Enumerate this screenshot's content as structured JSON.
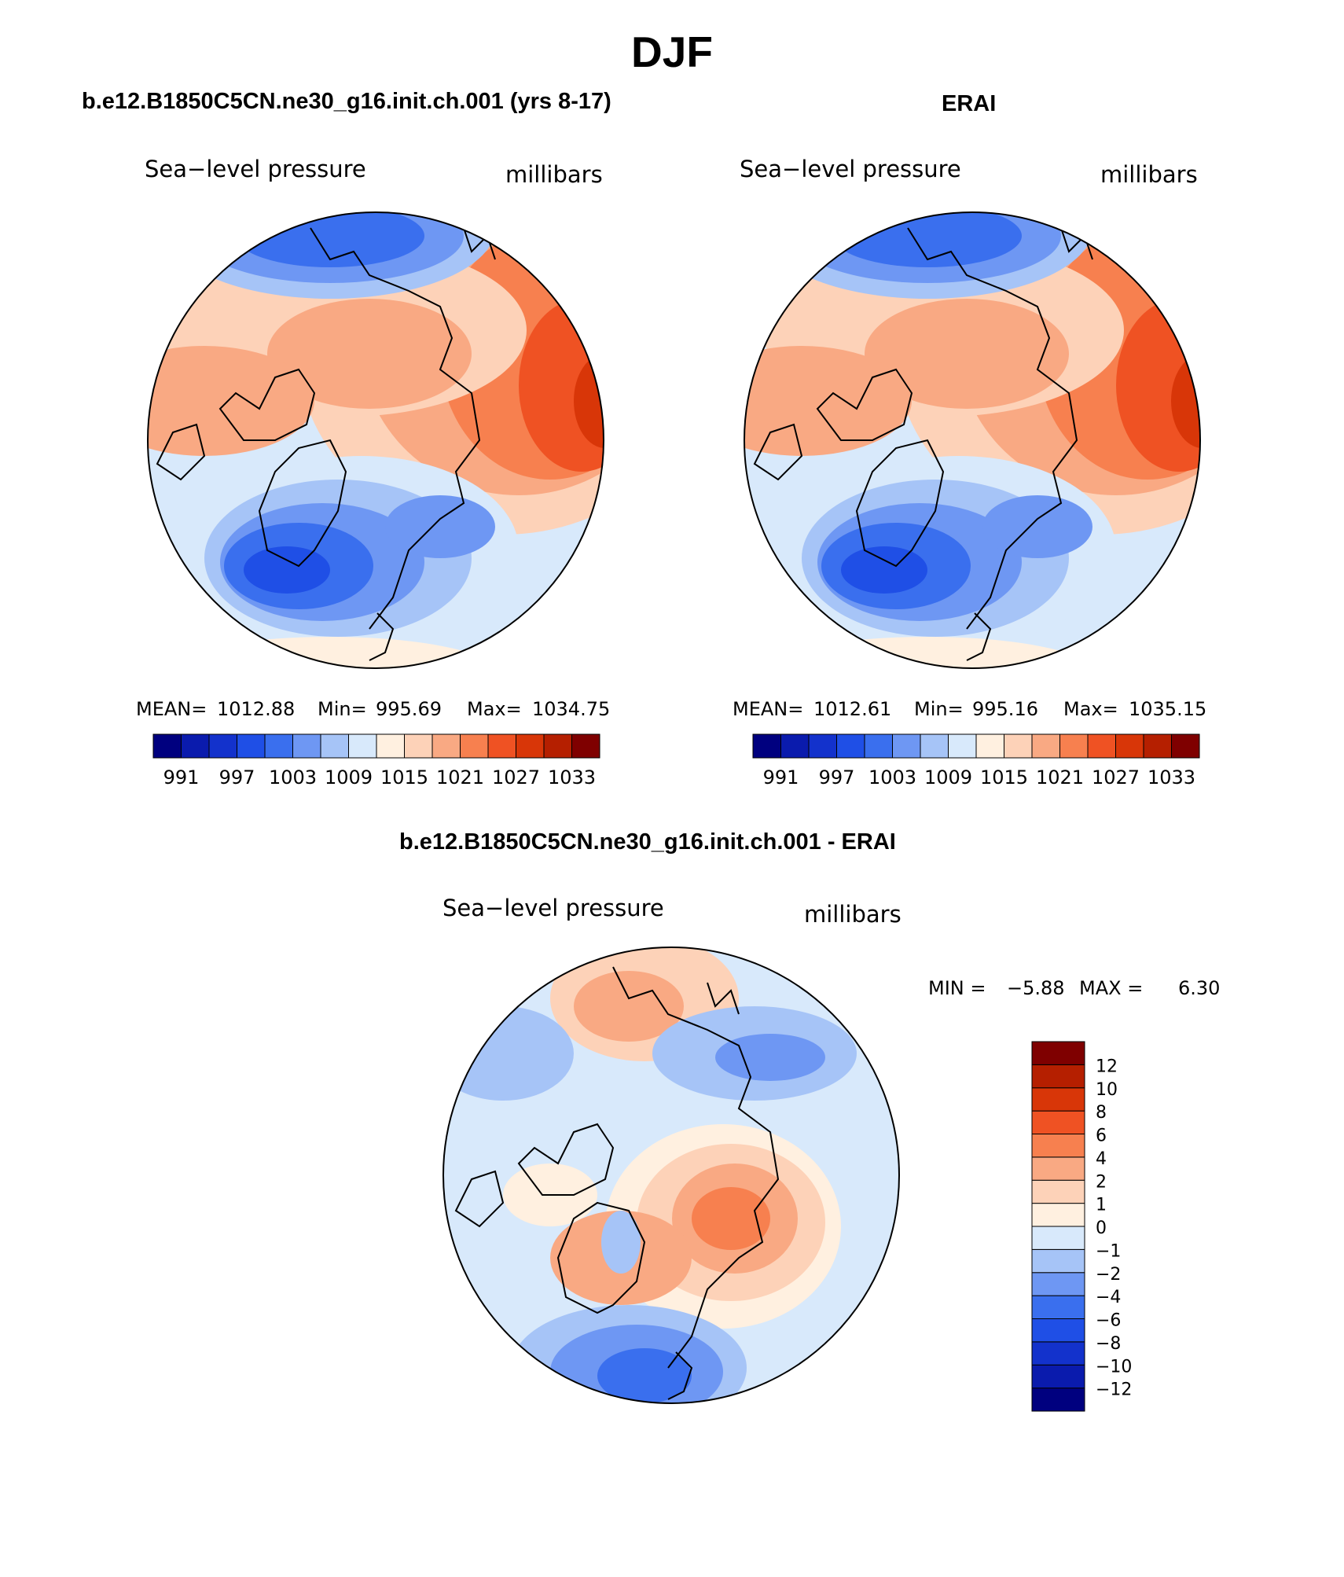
{
  "page": {
    "title": "DJF"
  },
  "panels": [
    {
      "title": "b.e12.B1850C5CN.ne30_g16.init.ch.001 (yrs 8-17)",
      "variable": "Sea−level pressure",
      "units": "millibars",
      "stats": {
        "mean_label": "MEAN=",
        "mean": "1012.88",
        "min_label": "Min=",
        "min": "995.69",
        "max_label": "Max=",
        "max": "1034.75"
      }
    },
    {
      "title": "ERAI",
      "variable": "Sea−level pressure",
      "units": "millibars",
      "stats": {
        "mean_label": "MEAN=",
        "mean": "1012.61",
        "min_label": "Min=",
        "min": "995.16",
        "max_label": "Max=",
        "max": "1035.15"
      }
    },
    {
      "title": "b.e12.B1850C5CN.ne30_g16.init.ch.001 - ERAI",
      "variable": "Sea−level pressure",
      "units": "millibars",
      "stats": {
        "min_label": "MIN =",
        "min": "−5.88",
        "max_label": "MAX =",
        "max": "6.30"
      }
    }
  ],
  "colorbar_abs": {
    "colors": [
      "#00007f",
      "#0a1bad",
      "#1332cc",
      "#1f4fe6",
      "#3a6fee",
      "#6e97f3",
      "#a6c4f7",
      "#d8e9fb",
      "#fff0e0",
      "#fdd2b8",
      "#f9a983",
      "#f7804f",
      "#ef5223",
      "#d83608",
      "#b51f00",
      "#7f0000"
    ],
    "labels": [
      "991",
      "997",
      "1003",
      "1009",
      "1015",
      "1021",
      "1027",
      "1033"
    ]
  },
  "colorbar_diff": {
    "colors": [
      "#00007f",
      "#0a1bad",
      "#1332cc",
      "#1f4fe6",
      "#3a6fee",
      "#6e97f3",
      "#a6c4f7",
      "#d8e9fb",
      "#fff0e0",
      "#fdd2b8",
      "#f9a983",
      "#f7804f",
      "#ef5223",
      "#d83608",
      "#b51f00",
      "#7f0000"
    ],
    "labels": [
      "−12",
      "−10",
      "−8",
      "−6",
      "−4",
      "−2",
      "−1",
      "0",
      "1",
      "2",
      "4",
      "6",
      "8",
      "10",
      "12"
    ]
  }
}
